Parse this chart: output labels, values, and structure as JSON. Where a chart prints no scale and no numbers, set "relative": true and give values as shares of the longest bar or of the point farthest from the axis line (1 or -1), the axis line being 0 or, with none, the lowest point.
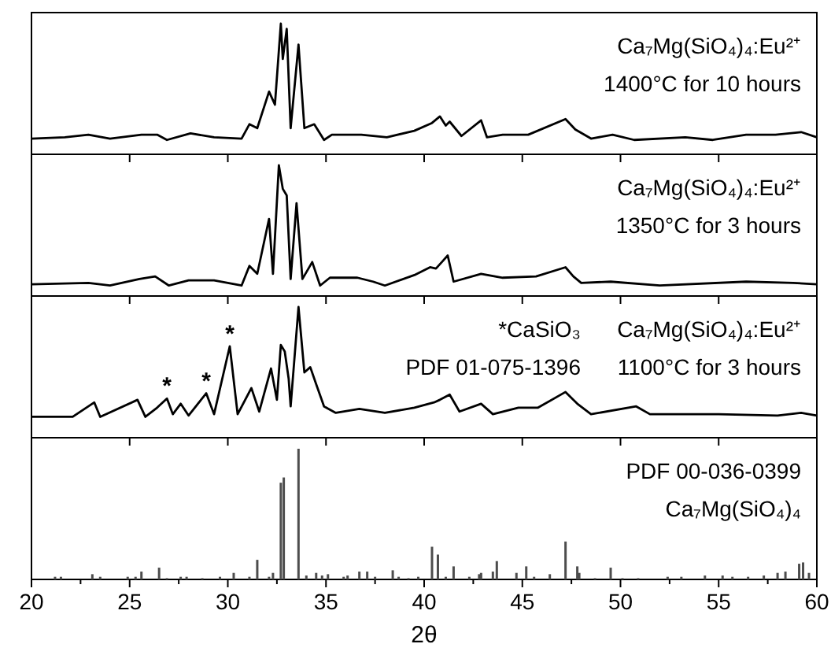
{
  "chart_data": [
    {
      "type": "line",
      "relative": true,
      "color": "#000000",
      "xlim": [
        20,
        60
      ],
      "tick_labels": false,
      "xticks": [
        20,
        25,
        30,
        35,
        40,
        45,
        50,
        55,
        60
      ],
      "x": [
        20,
        21.7,
        22.9,
        24,
        25.6,
        26.4,
        26.9,
        28.1,
        29.3,
        30.7,
        31.1,
        31.5,
        32.1,
        32.4,
        32.7,
        32.8,
        33,
        33.2,
        33.6,
        33.9,
        34.4,
        34.9,
        35.3,
        36.8,
        38.1,
        39.5,
        40.4,
        40.8,
        41.1,
        41.3,
        41.9,
        42.9,
        43.2,
        44,
        45.3,
        47.2,
        47.7,
        48.5,
        49.6,
        50.7,
        53.3,
        54.7,
        56.4,
        57.9,
        59.2,
        60
      ],
      "values": [
        0.12,
        0.13,
        0.15,
        0.12,
        0.15,
        0.15,
        0.11,
        0.16,
        0.13,
        0.12,
        0.23,
        0.2,
        0.48,
        0.38,
        1,
        0.73,
        0.96,
        0.2,
        0.84,
        0.2,
        0.23,
        0.11,
        0.15,
        0.15,
        0.13,
        0.18,
        0.24,
        0.29,
        0.22,
        0.25,
        0.14,
        0.26,
        0.13,
        0.15,
        0.15,
        0.27,
        0.19,
        0.12,
        0.15,
        0.11,
        0.13,
        0.11,
        0.15,
        0.15,
        0.17,
        0.13
      ],
      "annotations": [
        "Ca₇Mg(SiO₄)₄:Eu²⁺",
        "1400°C for 10 hours"
      ]
    },
    {
      "type": "line",
      "relative": true,
      "color": "#000000",
      "xlim": [
        20,
        60
      ],
      "tick_labels": false,
      "xticks": [
        20,
        25,
        30,
        35,
        40,
        45,
        50,
        55,
        60
      ],
      "x": [
        20,
        22.9,
        24,
        25.5,
        26.3,
        27,
        28,
        29.3,
        30.7,
        31.1,
        31.5,
        32.1,
        32.3,
        32.6,
        32.8,
        33,
        33.2,
        33.5,
        33.8,
        34.3,
        34.7,
        35.2,
        36.6,
        37.4,
        38,
        39.5,
        40.3,
        40.6,
        40.9,
        41.2,
        41.5,
        42.9,
        44,
        45.7,
        47.2,
        47.6,
        48,
        49.5,
        52,
        56.4,
        58.8,
        60
      ],
      "values": [
        0.09,
        0.1,
        0.08,
        0.13,
        0.15,
        0.08,
        0.12,
        0.12,
        0.08,
        0.23,
        0.17,
        0.59,
        0.17,
        1,
        0.82,
        0.77,
        0.13,
        0.71,
        0.13,
        0.26,
        0.08,
        0.14,
        0.14,
        0.11,
        0.08,
        0.16,
        0.22,
        0.21,
        0.26,
        0.31,
        0.11,
        0.17,
        0.14,
        0.15,
        0.22,
        0.15,
        0.1,
        0.11,
        0.08,
        0.11,
        0.1,
        0.09
      ],
      "annotations": [
        "Ca₇Mg(SiO₄)₄:Eu²⁺",
        "1350°C for 3 hours"
      ]
    },
    {
      "type": "line",
      "relative": true,
      "color": "#000000",
      "xlim": [
        20,
        60
      ],
      "tick_labels": false,
      "xticks": [
        20,
        25,
        30,
        35,
        40,
        45,
        50,
        55,
        60
      ],
      "x": [
        20,
        22.1,
        23.2,
        23.5,
        25.4,
        25.8,
        26.4,
        26.9,
        27.2,
        27.6,
        28,
        28.9,
        29.3,
        30.1,
        30.5,
        31.2,
        31.6,
        32.2,
        32.5,
        32.7,
        32.9,
        33.1,
        33.2,
        33.6,
        33.9,
        34.2,
        34.5,
        34.9,
        35.5,
        36.7,
        38,
        39.5,
        40.5,
        40.8,
        41.3,
        41.8,
        42.9,
        43.5,
        44.8,
        45.8,
        47.2,
        47.8,
        48.5,
        50.8,
        51.5,
        55,
        58,
        59.2,
        60
      ],
      "values": [
        0.16,
        0.16,
        0.27,
        0.16,
        0.29,
        0.16,
        0.23,
        0.3,
        0.18,
        0.26,
        0.17,
        0.34,
        0.18,
        0.7,
        0.18,
        0.38,
        0.2,
        0.53,
        0.29,
        0.71,
        0.66,
        0.45,
        0.24,
        1,
        0.5,
        0.54,
        0.41,
        0.24,
        0.19,
        0.22,
        0.19,
        0.23,
        0.27,
        0.29,
        0.33,
        0.2,
        0.26,
        0.18,
        0.23,
        0.23,
        0.35,
        0.26,
        0.18,
        0.24,
        0.18,
        0.18,
        0.17,
        0.19,
        0.17
      ],
      "annotations": [
        {
          "text": "*",
          "x": 26.9,
          "y": 0.3
        },
        {
          "text": "*",
          "x": 28.9,
          "y": 0.34
        },
        {
          "text": "*",
          "x": 30.1,
          "y": 0.7
        },
        "*CaSiO₃",
        "PDF 01-075-1396",
        "Ca₇Mg(SiO₄)₄:Eu²⁺",
        "1100°C for 3 hours"
      ]
    },
    {
      "type": "bar",
      "relative": true,
      "color": "#4d4d4d",
      "xlim": [
        20,
        60
      ],
      "xlabel": "2θ",
      "xticks": [
        20,
        {
          "value": 22.5,
          "label": null
        },
        25,
        {
          "value": 27.5,
          "label": null
        },
        30,
        {
          "value": 32.5,
          "label": null
        },
        35,
        {
          "value": 37.5,
          "label": null
        },
        40,
        {
          "value": 42.5,
          "label": null
        },
        45,
        {
          "value": 47.5,
          "label": null
        },
        50,
        {
          "value": 52.5,
          "label": null
        },
        55,
        {
          "value": 57.5,
          "label": null
        },
        60
      ],
      "x": [
        21.2,
        21.5,
        23.1,
        23.5,
        24.9,
        25.3,
        25.6,
        26.5,
        26.9,
        27.6,
        27.9,
        28.7,
        29.6,
        30.3,
        31.1,
        31.5,
        32.1,
        32.3,
        32.7,
        32.85,
        33.6,
        34,
        34.5,
        34.8,
        35.1,
        35.9,
        36.1,
        36.7,
        37.1,
        37.5,
        38.4,
        38.7,
        39.2,
        39.7,
        40.4,
        40.7,
        41.1,
        41.5,
        42.3,
        42.8,
        42.9,
        43.5,
        43.7,
        44.7,
        45.2,
        45.6,
        46.4,
        47.2,
        47.8,
        47.9,
        48.7,
        49.5,
        50.1,
        50.9,
        52.4,
        53.1,
        54.3,
        55.2,
        55.7,
        56.5,
        57.3,
        58,
        58.4,
        59.1,
        59.3,
        59.6
      ],
      "values": [
        0.02,
        0.02,
        0.04,
        0.02,
        0.02,
        0.02,
        0.06,
        0.09,
        0.01,
        0.02,
        0.02,
        0.01,
        0.02,
        0.05,
        0.02,
        0.15,
        0.02,
        0.05,
        0.74,
        0.78,
        1,
        0.03,
        0.05,
        0.03,
        0.04,
        0.02,
        0.03,
        0.06,
        0.06,
        0.02,
        0.07,
        0.02,
        0.01,
        0.02,
        0.25,
        0.19,
        0.02,
        0.1,
        0.02,
        0.04,
        0.05,
        0.06,
        0.14,
        0.05,
        0.1,
        0.02,
        0.04,
        0.29,
        0.1,
        0.05,
        0.01,
        0.09,
        0.01,
        0.01,
        0.02,
        0.02,
        0.03,
        0.03,
        0.02,
        0.02,
        0.03,
        0.05,
        0.06,
        0.12,
        0.13,
        0.05
      ],
      "annotations": [
        "PDF 00-036-0399",
        "Ca₇Mg(SiO₄)₄"
      ]
    }
  ]
}
